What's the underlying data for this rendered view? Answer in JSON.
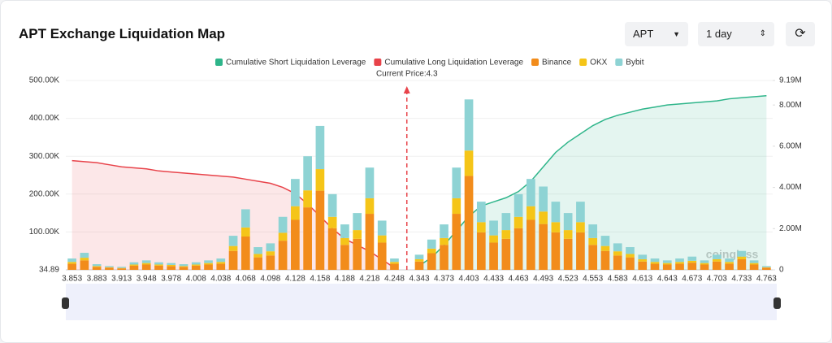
{
  "controls": {
    "symbol": "APT",
    "interval": "1 day"
  },
  "chart_data": {
    "type": "bar",
    "title": "APT Exchange Liquidation Map",
    "annotation": "Current Price:4.3",
    "watermark": "coinglass",
    "categories": [
      "3.853",
      null,
      "3.883",
      null,
      "3.913",
      null,
      "3.948",
      null,
      "3.978",
      null,
      "4.008",
      null,
      "4.038",
      null,
      "4.068",
      null,
      "4.098",
      null,
      "4.128",
      null,
      "4.158",
      null,
      "4.188",
      null,
      "4.218",
      null,
      "4.248",
      null,
      "4.343",
      null,
      "4.373",
      null,
      "4.403",
      null,
      "4.433",
      null,
      "4.463",
      null,
      "4.493",
      null,
      "4.523",
      null,
      "4.553",
      null,
      "4.583",
      null,
      "4.613",
      null,
      "4.643",
      null,
      "4.673",
      null,
      "4.703",
      null,
      "4.733",
      null,
      "4.763"
    ],
    "series": [
      {
        "name": "Cumulative Short Liquidation Leverage",
        "kind": "area",
        "axis": "y2",
        "color": "#2eb58a",
        "values": [
          null,
          null,
          null,
          null,
          null,
          null,
          null,
          null,
          null,
          null,
          null,
          null,
          null,
          null,
          null,
          null,
          null,
          null,
          null,
          null,
          null,
          null,
          null,
          null,
          null,
          null,
          null,
          null,
          200000,
          600000,
          1200000,
          1900000,
          2600000,
          3100000,
          3300000,
          3500000,
          3800000,
          4300000,
          5000000,
          5700000,
          6200000,
          6600000,
          7000000,
          7300000,
          7500000,
          7650000,
          7800000,
          7900000,
          8000000,
          8050000,
          8100000,
          8150000,
          8200000,
          8300000,
          8350000,
          8400000,
          8450000
        ]
      },
      {
        "name": "Cumulative Long Liquidation Leverage",
        "kind": "area",
        "axis": "y2",
        "color": "#e8434a",
        "values": [
          5300000,
          5250000,
          5200000,
          5100000,
          5000000,
          4950000,
          4900000,
          4800000,
          4750000,
          4700000,
          4650000,
          4600000,
          4550000,
          4500000,
          4400000,
          4300000,
          4200000,
          4000000,
          3700000,
          3200000,
          2600000,
          2000000,
          1500000,
          1200000,
          900000,
          500000,
          100000,
          null,
          null,
          null,
          null,
          null,
          null,
          null,
          null,
          null,
          null,
          null,
          null,
          null,
          null,
          null,
          null,
          null,
          null,
          null,
          null,
          null,
          null,
          null,
          null,
          null,
          null,
          null,
          null,
          null,
          null
        ]
      },
      {
        "name": "Binance",
        "kind": "bar",
        "color": "#f28c1b",
        "values": [
          16000,
          25000,
          8000,
          6000,
          4000,
          11000,
          14000,
          11000,
          10000,
          8000,
          11000,
          14000,
          16000,
          50000,
          88000,
          33000,
          38000,
          77000,
          132000,
          165000,
          209000,
          110000,
          66000,
          82000,
          148000,
          72000,
          16000,
          0,
          22000,
          44000,
          66000,
          148000,
          248000,
          99000,
          72000,
          82000,
          110000,
          132000,
          121000,
          99000,
          82000,
          99000,
          66000,
          50000,
          38000,
          33000,
          22000,
          16000,
          14000,
          16000,
          19000,
          14000,
          22000,
          16000,
          28000,
          14000,
          6000
        ]
      },
      {
        "name": "OKX",
        "kind": "bar",
        "color": "#f5c518",
        "values": [
          5000,
          7000,
          2000,
          1000,
          1000,
          3000,
          4000,
          3000,
          3000,
          2000,
          3000,
          4000,
          5000,
          13000,
          24000,
          9000,
          11000,
          21000,
          36000,
          45000,
          57000,
          30000,
          18000,
          23000,
          41000,
          19000,
          5000,
          0,
          6000,
          12000,
          18000,
          41000,
          67000,
          27000,
          19000,
          23000,
          30000,
          36000,
          33000,
          27000,
          23000,
          27000,
          18000,
          13000,
          11000,
          9000,
          6000,
          5000,
          4000,
          5000,
          5000,
          4000,
          6000,
          5000,
          7000,
          4000,
          1000
        ]
      },
      {
        "name": "Bybit",
        "kind": "bar",
        "color": "#8ed3d4",
        "values": [
          9000,
          13000,
          5000,
          3000,
          3000,
          6000,
          7000,
          6000,
          5000,
          5000,
          6000,
          7000,
          9000,
          27000,
          48000,
          18000,
          21000,
          42000,
          72000,
          90000,
          114000,
          60000,
          36000,
          45000,
          81000,
          39000,
          9000,
          0,
          12000,
          24000,
          36000,
          81000,
          135000,
          54000,
          39000,
          45000,
          60000,
          72000,
          66000,
          54000,
          45000,
          54000,
          36000,
          27000,
          21000,
          18000,
          12000,
          9000,
          7000,
          9000,
          11000,
          7000,
          12000,
          9000,
          15000,
          7000,
          3000
        ]
      }
    ],
    "ylim": [
      34.89,
      500000
    ],
    "yticks": [
      34.89,
      {
        "value": 100000,
        "label": "100.00K"
      },
      {
        "value": 200000,
        "label": "200.00K"
      },
      {
        "value": 300000,
        "label": "300.00K"
      },
      {
        "value": 400000,
        "label": "400.00K"
      },
      {
        "value": 500000,
        "label": "500.00K"
      }
    ],
    "y2lim": [
      0,
      9190000
    ],
    "y2ticks": [
      0,
      {
        "value": 2000000,
        "label": "2.00M"
      },
      {
        "value": 4000000,
        "label": "4.00M"
      },
      {
        "value": 6000000,
        "label": "6.00M"
      },
      {
        "value": 8000000,
        "label": "8.00M"
      },
      {
        "value": 9190000,
        "label": "9.19M"
      }
    ],
    "grid": true,
    "legend": "top"
  }
}
